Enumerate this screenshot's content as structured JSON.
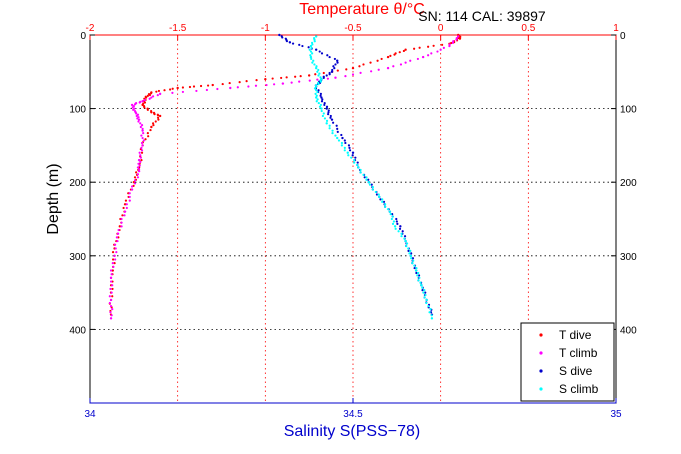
{
  "chart_data": {
    "type": "scatter",
    "top_axis_label": "Temperature θ/°C",
    "annotation": "SN: 114  CAL: 39897",
    "ylabel": "Depth (m)",
    "xlabel": "Salinity S(PSS−78)",
    "temperature_axis": {
      "range": [
        -2,
        1
      ],
      "ticks": [
        "-2",
        "-1.5",
        "-1",
        "-0.5",
        "0",
        "0.5",
        "1"
      ]
    },
    "salinity_axis": {
      "range": [
        34,
        35
      ],
      "ticks": [
        "34",
        "34.5",
        "35"
      ]
    },
    "depth_axis": {
      "range": [
        0,
        500
      ],
      "reversed": true,
      "ticks": [
        "0",
        "100",
        "200",
        "300",
        "400"
      ]
    },
    "grid": true,
    "legend_position": "bottom-right",
    "colors": {
      "t_dive": "#ff0000",
      "t_climb": "#ff00ff",
      "s_dive": "#0000cc",
      "s_climb": "#00ffff",
      "temp_axis": "#ff0000",
      "sal_axis": "#0000cc"
    },
    "series": [
      {
        "name": "T dive",
        "axis": "temperature",
        "color": "#ff0000",
        "points": [
          [
            0.1,
            0
          ],
          [
            0.11,
            5
          ],
          [
            0.05,
            12
          ],
          [
            -0.2,
            20
          ],
          [
            -0.3,
            30
          ],
          [
            -0.5,
            45
          ],
          [
            -0.75,
            55
          ],
          [
            -1.0,
            60
          ],
          [
            -1.3,
            68
          ],
          [
            -1.5,
            72
          ],
          [
            -1.65,
            78
          ],
          [
            -1.68,
            85
          ],
          [
            -1.7,
            95
          ],
          [
            -1.65,
            105
          ],
          [
            -1.6,
            110
          ],
          [
            -1.65,
            125
          ],
          [
            -1.7,
            150
          ],
          [
            -1.72,
            180
          ],
          [
            -1.75,
            200
          ],
          [
            -1.8,
            230
          ],
          [
            -1.83,
            260
          ],
          [
            -1.86,
            290
          ],
          [
            -1.87,
            320
          ],
          [
            -1.88,
            350
          ],
          [
            -1.88,
            380
          ]
        ]
      },
      {
        "name": "T climb",
        "axis": "temperature",
        "color": "#ff00ff",
        "points": [
          [
            -1.88,
            385
          ],
          [
            -1.88,
            360
          ],
          [
            -1.88,
            330
          ],
          [
            -1.86,
            300
          ],
          [
            -1.84,
            270
          ],
          [
            -1.8,
            240
          ],
          [
            -1.76,
            210
          ],
          [
            -1.72,
            185
          ],
          [
            -1.72,
            170
          ],
          [
            -1.7,
            150
          ],
          [
            -1.7,
            130
          ],
          [
            -1.72,
            115
          ],
          [
            -1.74,
            105
          ],
          [
            -1.76,
            95
          ],
          [
            -1.7,
            90
          ],
          [
            -1.6,
            80
          ],
          [
            -1.2,
            72
          ],
          [
            -0.9,
            66
          ],
          [
            -0.6,
            58
          ],
          [
            -0.3,
            45
          ],
          [
            -0.1,
            30
          ],
          [
            0.05,
            15
          ],
          [
            0.1,
            2
          ]
        ]
      },
      {
        "name": "S dive",
        "axis": "salinity",
        "color": "#0000cc",
        "points": [
          [
            34.36,
            0
          ],
          [
            34.38,
            10
          ],
          [
            34.43,
            20
          ],
          [
            34.47,
            35
          ],
          [
            34.46,
            50
          ],
          [
            34.44,
            60
          ],
          [
            34.43,
            70
          ],
          [
            34.44,
            85
          ],
          [
            34.45,
            100
          ],
          [
            34.46,
            115
          ],
          [
            34.48,
            140
          ],
          [
            34.5,
            160
          ],
          [
            34.51,
            180
          ],
          [
            34.53,
            200
          ],
          [
            34.55,
            220
          ],
          [
            34.57,
            240
          ],
          [
            34.59,
            260
          ],
          [
            34.6,
            280
          ],
          [
            34.61,
            300
          ],
          [
            34.62,
            320
          ],
          [
            34.63,
            340
          ],
          [
            34.64,
            360
          ],
          [
            34.65,
            380
          ]
        ]
      },
      {
        "name": "S climb",
        "axis": "salinity",
        "color": "#00ffff",
        "points": [
          [
            34.65,
            385
          ],
          [
            34.64,
            360
          ],
          [
            34.63,
            340
          ],
          [
            34.62,
            320
          ],
          [
            34.61,
            300
          ],
          [
            34.6,
            280
          ],
          [
            34.58,
            260
          ],
          [
            34.57,
            240
          ],
          [
            34.55,
            220
          ],
          [
            34.53,
            200
          ],
          [
            34.51,
            180
          ],
          [
            34.49,
            160
          ],
          [
            34.47,
            140
          ],
          [
            34.45,
            120
          ],
          [
            34.44,
            100
          ],
          [
            34.43,
            85
          ],
          [
            34.43,
            70
          ],
          [
            34.44,
            60
          ],
          [
            34.43,
            45
          ],
          [
            34.42,
            30
          ],
          [
            34.42,
            15
          ],
          [
            34.43,
            2
          ]
        ]
      }
    ]
  }
}
